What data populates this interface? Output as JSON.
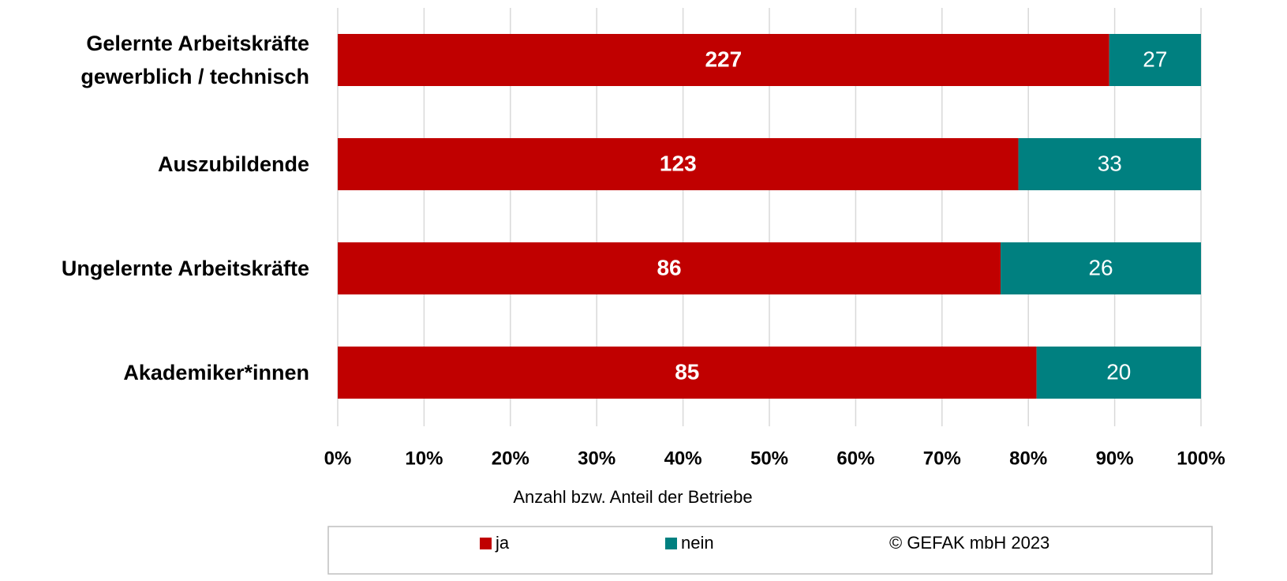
{
  "chart_data": {
    "type": "bar",
    "orientation": "horizontal",
    "stacking": "percent",
    "categories": [
      "Gelernte Arbeitskräfte\ngewerblich / technisch",
      "Auszubildende",
      "Ungelernte Arbeitskräfte",
      "Akademiker*innen"
    ],
    "series": [
      {
        "name": "ja",
        "color": "#c00000",
        "values": [
          227,
          123,
          86,
          85
        ]
      },
      {
        "name": "nein",
        "color": "#008080",
        "values": [
          27,
          33,
          26,
          20
        ]
      }
    ],
    "xlim": [
      0,
      100
    ],
    "xticks": [
      {
        "value": 0,
        "label": "0%"
      },
      {
        "value": 10,
        "label": "10%"
      },
      {
        "value": 20,
        "label": "20%"
      },
      {
        "value": 30,
        "label": "30%"
      },
      {
        "value": 40,
        "label": "40%"
      },
      {
        "value": 50,
        "label": "50%"
      },
      {
        "value": 60,
        "label": "60%"
      },
      {
        "value": 70,
        "label": "70%"
      },
      {
        "value": 80,
        "label": "80%"
      },
      {
        "value": 90,
        "label": "90%"
      },
      {
        "value": 100,
        "label": "100%"
      }
    ],
    "xlabel": "Anzahl bzw. Anteil der Betriebe",
    "grid": true,
    "legend": "bottom",
    "copyright": "© GEFAK mbH 2023"
  }
}
